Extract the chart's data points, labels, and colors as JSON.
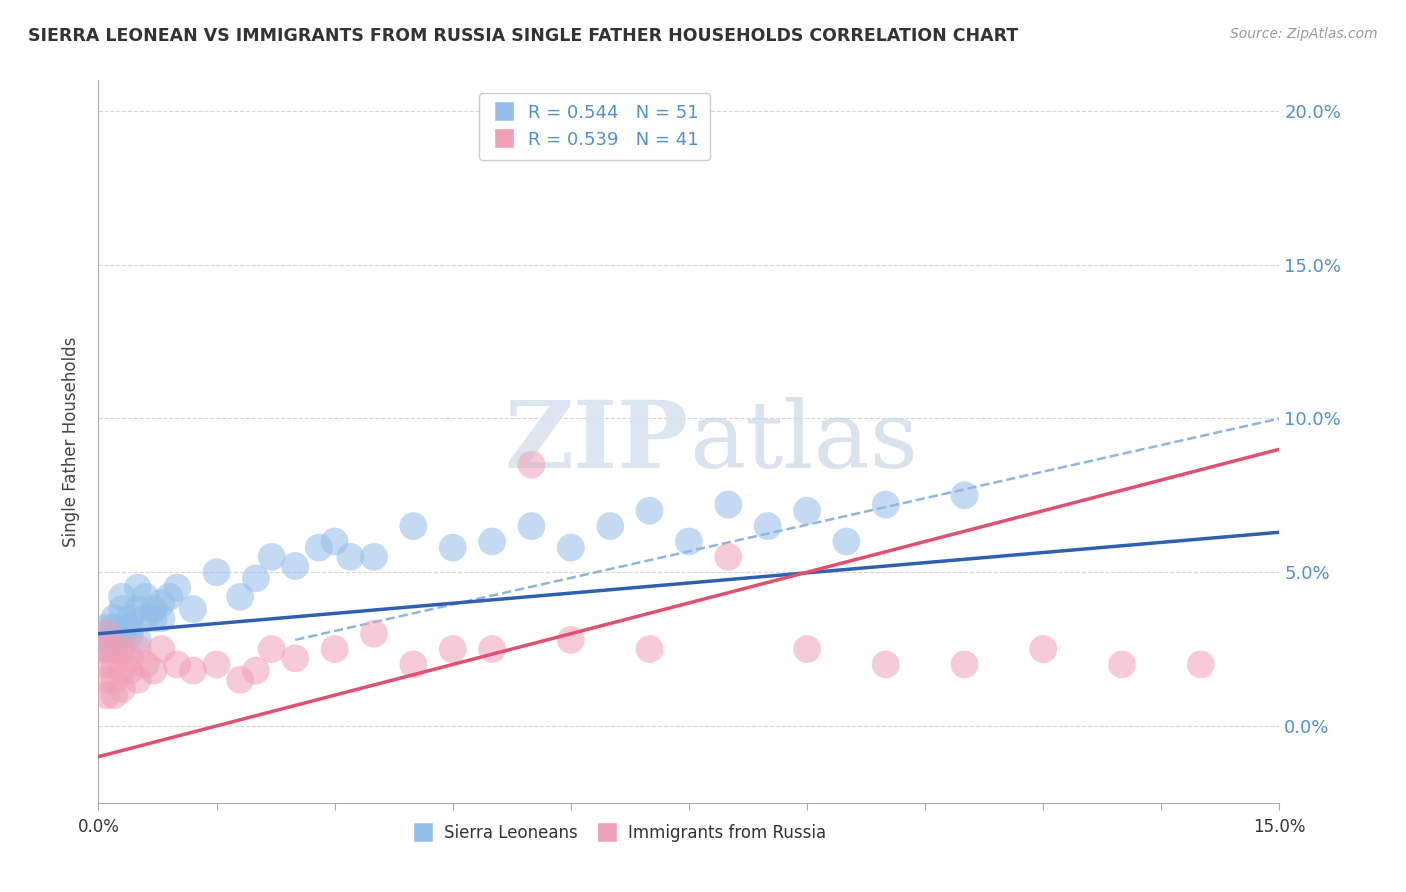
{
  "title": "SIERRA LEONEAN VS IMMIGRANTS FROM RUSSIA SINGLE FATHER HOUSEHOLDS CORRELATION CHART",
  "source": "Source: ZipAtlas.com",
  "ylabel": "Single Father Households",
  "legend_blue": "R = 0.544   N = 51",
  "legend_pink": "R = 0.539   N = 41",
  "legend_label_blue": "Sierra Leoneans",
  "legend_label_pink": "Immigrants from Russia",
  "xlim": [
    0.0,
    0.15
  ],
  "ylim": [
    -0.025,
    0.21
  ],
  "ytick_vals": [
    0.0,
    0.05,
    0.1,
    0.15,
    0.2
  ],
  "ytick_labels": [
    "0.0%",
    "5.0%",
    "10.0%",
    "15.0%",
    "20.0%"
  ],
  "blue_color": "#92BDE8",
  "pink_color": "#F0A0B8",
  "blue_line_color": "#3060B0",
  "pink_line_color": "#E05070",
  "dash_color": "#7AAAD8",
  "blue_scatter_x": [
    0.001,
    0.001,
    0.001,
    0.001,
    0.002,
    0.002,
    0.002,
    0.002,
    0.002,
    0.003,
    0.003,
    0.003,
    0.003,
    0.004,
    0.004,
    0.004,
    0.005,
    0.005,
    0.005,
    0.006,
    0.006,
    0.007,
    0.007,
    0.008,
    0.008,
    0.009,
    0.01,
    0.012,
    0.015,
    0.018,
    0.02,
    0.022,
    0.025,
    0.028,
    0.03,
    0.032,
    0.035,
    0.04,
    0.045,
    0.05,
    0.055,
    0.06,
    0.065,
    0.07,
    0.075,
    0.08,
    0.085,
    0.09,
    0.095,
    0.1,
    0.11
  ],
  "blue_scatter_y": [
    0.03,
    0.025,
    0.032,
    0.028,
    0.032,
    0.028,
    0.035,
    0.03,
    0.026,
    0.038,
    0.03,
    0.025,
    0.042,
    0.035,
    0.03,
    0.032,
    0.038,
    0.028,
    0.045,
    0.035,
    0.042,
    0.038,
    0.035,
    0.04,
    0.035,
    0.042,
    0.045,
    0.038,
    0.05,
    0.042,
    0.048,
    0.055,
    0.052,
    0.058,
    0.06,
    0.055,
    0.055,
    0.065,
    0.058,
    0.06,
    0.065,
    0.058,
    0.065,
    0.07,
    0.06,
    0.072,
    0.065,
    0.07,
    0.06,
    0.072,
    0.075
  ],
  "pink_scatter_x": [
    0.001,
    0.001,
    0.001,
    0.001,
    0.001,
    0.002,
    0.002,
    0.002,
    0.002,
    0.003,
    0.003,
    0.003,
    0.004,
    0.004,
    0.005,
    0.005,
    0.006,
    0.007,
    0.008,
    0.01,
    0.012,
    0.015,
    0.018,
    0.02,
    0.022,
    0.025,
    0.03,
    0.035,
    0.04,
    0.045,
    0.05,
    0.055,
    0.06,
    0.07,
    0.08,
    0.09,
    0.1,
    0.11,
    0.12,
    0.13,
    0.14
  ],
  "pink_scatter_y": [
    0.025,
    0.02,
    0.015,
    0.01,
    0.03,
    0.02,
    0.025,
    0.015,
    0.01,
    0.025,
    0.018,
    0.012,
    0.022,
    0.018,
    0.025,
    0.015,
    0.02,
    0.018,
    0.025,
    0.02,
    0.018,
    0.02,
    0.015,
    0.018,
    0.025,
    0.022,
    0.025,
    0.03,
    0.02,
    0.025,
    0.025,
    0.085,
    0.028,
    0.025,
    0.055,
    0.025,
    0.02,
    0.02,
    0.025,
    0.02,
    0.02
  ],
  "blue_trend_x": [
    0.0,
    0.15
  ],
  "blue_trend_y": [
    0.03,
    0.063
  ],
  "pink_trend_x": [
    0.0,
    0.15
  ],
  "pink_trend_y": [
    -0.01,
    0.09
  ],
  "dash_trend_x": [
    0.025,
    0.15
  ],
  "dash_trend_y": [
    0.028,
    0.1
  ]
}
